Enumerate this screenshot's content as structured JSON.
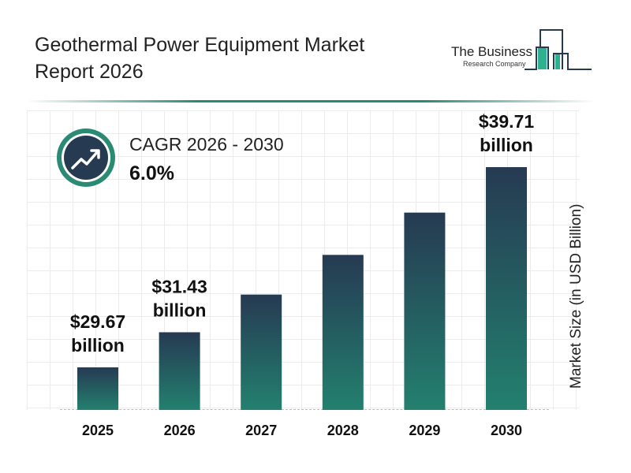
{
  "header": {
    "title": "Geothermal Power Equipment Market Report 2026",
    "logo_line1": "The Business",
    "logo_line2": "Research Company"
  },
  "cagr": {
    "label": "CAGR 2026 - 2030",
    "value": "6.0%",
    "icon": "trending-up-icon"
  },
  "colors": {
    "bar_top": "#263a52",
    "bar_bottom": "#23806f",
    "accent": "#2a8a74"
  },
  "chart_data": {
    "type": "bar",
    "title": "Geothermal Power Equipment Market Report 2026",
    "xlabel": "",
    "ylabel": "Market Size (in USD Billion)",
    "categories": [
      "2025",
      "2026",
      "2027",
      "2028",
      "2029",
      "2030"
    ],
    "values": [
      29.67,
      31.43,
      33.32,
      35.31,
      37.43,
      39.71
    ],
    "data_labels": [
      {
        "category": "2025",
        "line1": "$29.67",
        "line2": "billion"
      },
      {
        "category": "2026",
        "line1": "$31.43",
        "line2": "billion"
      },
      {
        "category": "2030",
        "line1": "$39.71",
        "line2": "billion"
      }
    ],
    "grid": true,
    "legend": "none"
  }
}
